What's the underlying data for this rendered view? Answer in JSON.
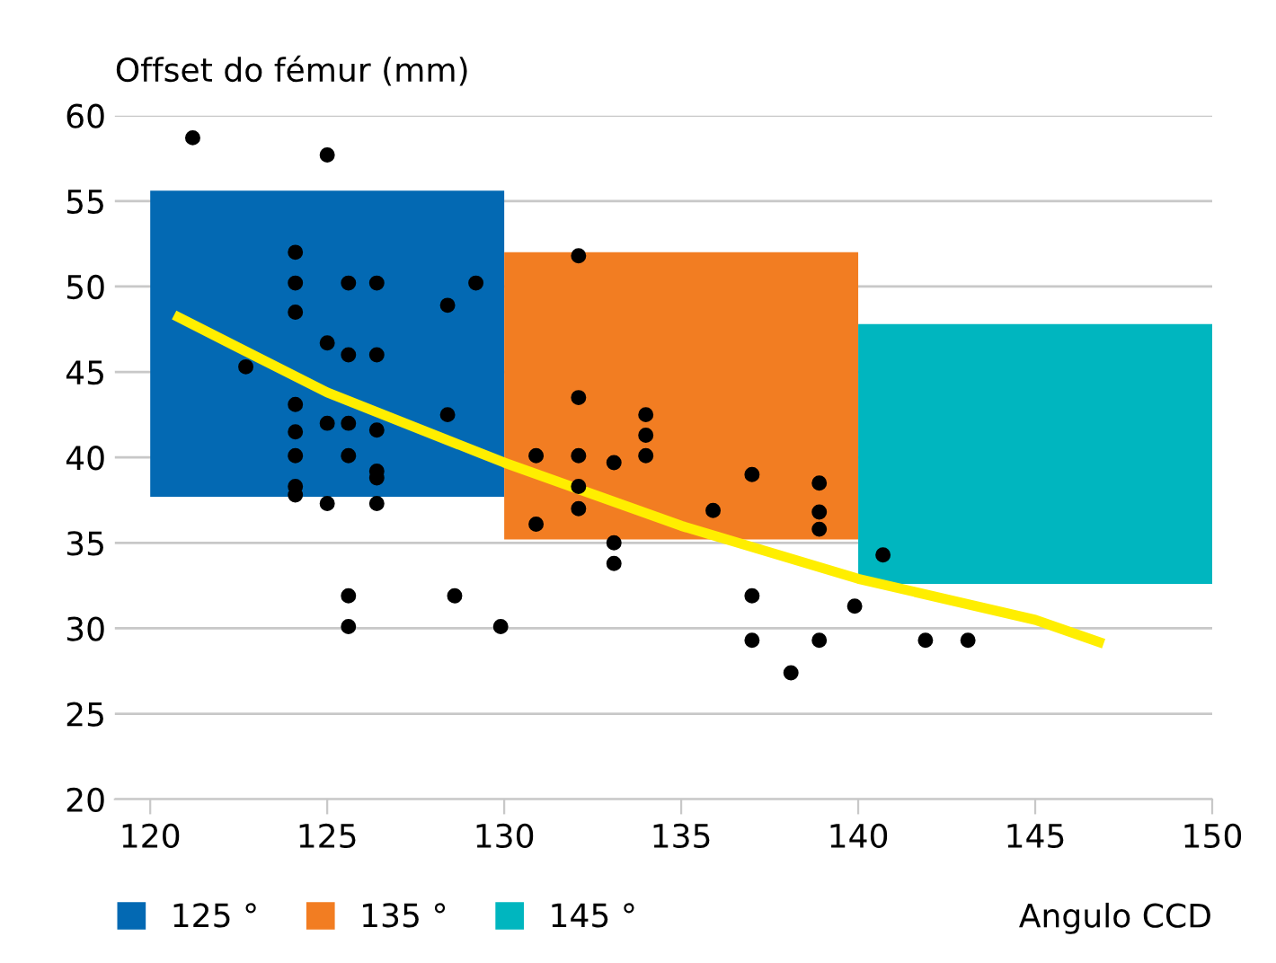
{
  "chart_data": {
    "type": "scatter",
    "ylabel": "Offset do fémur (mm)",
    "xlabel": "Angulo CCD",
    "xlim": [
      119,
      150
    ],
    "xticks": [
      120,
      125,
      130,
      135,
      140,
      145,
      150
    ],
    "ylim": [
      20,
      60
    ],
    "yticks": [
      20,
      25,
      30,
      35,
      40,
      45,
      50,
      55,
      60
    ],
    "grid": "y",
    "legend": "bottom left",
    "marker": "circle",
    "series": [
      {
        "type": "bar",
        "name": "125 °",
        "color": "#0369b3",
        "x": [
          125
        ],
        "base": [
          37.7
        ],
        "values": [
          17.9
        ]
      },
      {
        "type": "bar",
        "name": "135 °",
        "color": "#f27d22",
        "x": [
          135
        ],
        "base": [
          35.2
        ],
        "values": [
          16.8
        ]
      },
      {
        "type": "bar",
        "name": "145 °",
        "color": "#00b6bf",
        "x": [
          145
        ],
        "base": [
          32.6
        ],
        "values": [
          15.2
        ]
      },
      {
        "color": "#000000",
        "x": [
          121.2,
          125.0,
          124.1,
          124.1,
          124.1,
          125.6,
          126.4,
          128.4,
          129.2,
          122.7,
          125.0,
          125.6,
          126.4,
          124.1,
          124.1,
          124.1,
          124.1,
          124.1,
          125.0,
          125.6,
          126.4,
          125.6,
          126.4,
          126.4,
          125.0,
          126.4,
          128.4,
          125.6,
          125.6,
          128.6,
          129.9,
          132.1,
          132.1,
          130.9,
          132.1,
          133.1,
          134.0,
          134.0,
          134.0,
          132.1,
          132.1,
          130.9,
          133.1,
          133.1,
          135.9,
          137.0,
          138.9,
          138.9,
          138.9,
          137.0,
          137.0,
          138.1,
          138.9,
          139.9,
          140.7,
          141.9,
          143.1
        ],
        "values": [
          58.7,
          57.7,
          52.0,
          50.2,
          48.5,
          50.2,
          50.2,
          48.9,
          50.2,
          45.3,
          46.7,
          46.0,
          46.0,
          43.1,
          41.5,
          40.1,
          38.3,
          37.8,
          42.0,
          42.0,
          41.6,
          40.1,
          39.2,
          38.8,
          37.3,
          37.3,
          42.5,
          31.9,
          30.1,
          31.9,
          30.1,
          51.8,
          43.5,
          40.1,
          40.1,
          39.7,
          42.5,
          41.3,
          40.1,
          38.3,
          37.0,
          36.1,
          35.0,
          33.8,
          36.9,
          39.0,
          38.5,
          36.8,
          35.8,
          31.9,
          29.3,
          27.4,
          29.3,
          31.3,
          34.3,
          29.3,
          29.3
        ]
      },
      {
        "type": "line",
        "color": "#ffee00",
        "marker": "none",
        "x": [
          120.8,
          125,
          130,
          135,
          140,
          145,
          146.8
        ],
        "values": [
          48.2,
          43.8,
          39.7,
          36.0,
          32.9,
          30.5,
          29.2
        ]
      }
    ]
  }
}
